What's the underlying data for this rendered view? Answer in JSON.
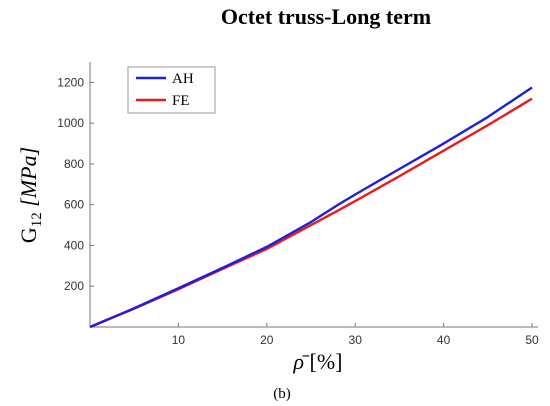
{
  "chart_data": {
    "type": "line",
    "title": "Octet truss-Long term",
    "caption": "(b)",
    "xlabel": {
      "symbol": "ρ̄",
      "unit": "[%]"
    },
    "ylabel": {
      "main": "G",
      "sub": "12",
      "unit": "[MPa]"
    },
    "xlim": [
      0,
      50
    ],
    "ylim": [
      0,
      1300
    ],
    "xticks": [
      10,
      20,
      30,
      40,
      50
    ],
    "yticks": [
      200,
      400,
      600,
      800,
      1000,
      1200
    ],
    "grid": false,
    "legend_position": "top-left",
    "series": [
      {
        "name": "AH",
        "color": "#1f1fd6",
        "x": [
          0,
          5,
          10,
          15,
          20,
          25,
          28,
          30,
          35,
          40,
          45,
          50
        ],
        "y": [
          0,
          92,
          190,
          290,
          393,
          515,
          598,
          650,
          775,
          900,
          1030,
          1175
        ]
      },
      {
        "name": "FE",
        "color": "#e81c1c",
        "x": [
          0,
          5,
          10,
          15,
          20,
          25,
          28,
          30,
          35,
          40,
          45,
          50
        ],
        "y": [
          0,
          90,
          185,
          285,
          383,
          500,
          570,
          618,
          740,
          865,
          990,
          1120
        ]
      }
    ]
  }
}
